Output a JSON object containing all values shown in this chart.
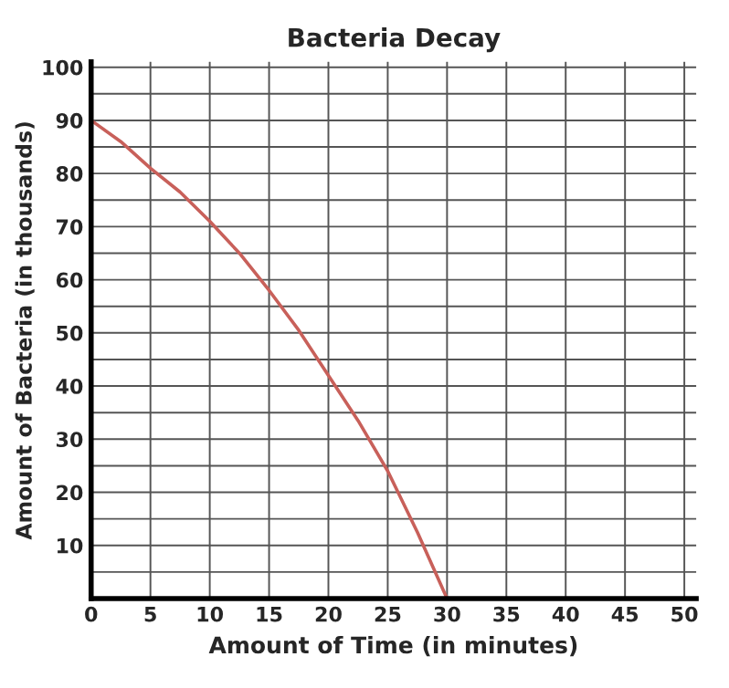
{
  "chart_data": {
    "type": "line",
    "title": "Bacteria Decay",
    "xlabel": "Amount of Time (in minutes)",
    "ylabel": "Amount of Bacteria (in thousands)",
    "x": [
      0,
      2.5,
      5,
      7.5,
      10,
      12.5,
      15,
      17.5,
      20,
      22.5,
      25,
      27.5,
      30
    ],
    "series": [
      {
        "color": "#c8605a",
        "values": [
          90,
          86,
          81,
          76.5,
          71,
          65,
          58,
          50.5,
          42,
          33.5,
          24,
          12.5,
          0
        ]
      }
    ],
    "xlim": [
      0,
      51
    ],
    "ylim": [
      0,
      101
    ],
    "xticks": [
      0,
      5,
      10,
      15,
      20,
      25,
      30,
      35,
      40,
      45,
      50
    ],
    "yticks": [
      {
        "value": 5,
        "label": null
      },
      10,
      {
        "value": 15,
        "label": null
      },
      20,
      {
        "value": 25,
        "label": null
      },
      30,
      {
        "value": 35,
        "label": null
      },
      40,
      {
        "value": 45,
        "label": null
      },
      50,
      {
        "value": 55,
        "label": null
      },
      60,
      {
        "value": 65,
        "label": null
      },
      70,
      {
        "value": 75,
        "label": null
      },
      80,
      {
        "value": 85,
        "label": null
      },
      90,
      {
        "value": 95,
        "label": null
      },
      100
    ],
    "grid": true,
    "marker": "none",
    "line_style": "solid"
  }
}
